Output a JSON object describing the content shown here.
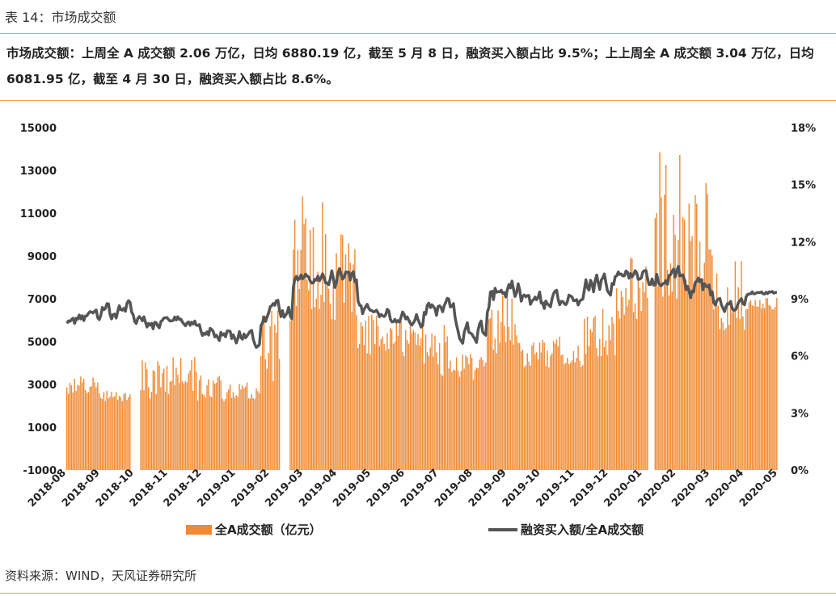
{
  "header": {
    "title": "表 14：市场成交额",
    "summary": "市场成交额：上周全 A 成交额 2.06 万亿，日均 6880.19 亿，截至 5 月 8 日，融资买入额占比 9.5%；上上周全 A 成交额 3.04 万亿，日均 6081.95 亿，截至 4 月 30 日，融资买入额占比 8.6%。"
  },
  "footer": {
    "source": "资料来源：WIND，天风证券研究所"
  },
  "chart_data": {
    "type": "bar+line",
    "x_labels": [
      "2018-08",
      "2018-09",
      "2018-10",
      "2018-11",
      "2018-12",
      "2019-01",
      "2019-02",
      "2019-03",
      "2019-04",
      "2019-05",
      "2019-06",
      "2019-07",
      "2019-08",
      "2019-09",
      "2019-10",
      "2019-11",
      "2019-12",
      "2020-01",
      "2020-02",
      "2020-03",
      "2020-04",
      "2020-05"
    ],
    "left_axis": {
      "ylim": [
        -1000,
        15000
      ],
      "ticks": [
        "-1000",
        "1000",
        "3000",
        "5000",
        "7000",
        "9000",
        "11000",
        "13000",
        "15000"
      ]
    },
    "right_axis": {
      "ylim": [
        0,
        18
      ],
      "ticks": [
        "0%",
        "3%",
        "6%",
        "9%",
        "12%",
        "15%",
        "18%"
      ]
    },
    "series": [
      {
        "name": "全A成交额（亿元）",
        "type": "bar",
        "axis": "left",
        "color": "#f08a34",
        "monthly_range": [
          [
            2500,
            3400
          ],
          [
            2200,
            2700
          ],
          [
            2200,
            4200
          ],
          [
            2500,
            4500
          ],
          [
            2200,
            3600
          ],
          [
            2300,
            3100
          ],
          [
            2800,
            6500
          ],
          [
            6500,
            11800
          ],
          [
            6000,
            10400
          ],
          [
            4300,
            6300
          ],
          [
            4300,
            6100
          ],
          [
            3300,
            5900
          ],
          [
            3200,
            4500
          ],
          [
            4300,
            7500
          ],
          [
            3800,
            5100
          ],
          [
            3700,
            5300
          ],
          [
            4300,
            6600
          ],
          [
            6000,
            9300
          ],
          [
            7000,
            14100
          ],
          [
            7500,
            12500
          ],
          [
            5500,
            8800
          ],
          [
            6500,
            7100
          ]
        ]
      },
      {
        "name": "融资买入额/全A成交额",
        "type": "line",
        "axis": "right",
        "color": "#555555",
        "monthly_range": [
          [
            7.3,
            8.5
          ],
          [
            7.5,
            9.3
          ],
          [
            7.0,
            8.4
          ],
          [
            7.3,
            8.3
          ],
          [
            6.6,
            8.0
          ],
          [
            6.2,
            7.8
          ],
          [
            7.5,
            9.3
          ],
          [
            9.6,
            10.6
          ],
          [
            9.0,
            11.0
          ],
          [
            7.6,
            8.9
          ],
          [
            7.2,
            8.7
          ],
          [
            7.6,
            9.3
          ],
          [
            6.3,
            8.2
          ],
          [
            8.3,
            10.5
          ],
          [
            8.0,
            9.7
          ],
          [
            8.2,
            9.8
          ],
          [
            8.6,
            10.7
          ],
          [
            9.5,
            10.8
          ],
          [
            9.2,
            11.0
          ],
          [
            8.5,
            10.5
          ],
          [
            8.0,
            9.2
          ],
          [
            9.1,
            9.5
          ]
        ]
      }
    ],
    "legend": [
      "全A成交额（亿元）",
      "融资买入额/全A成交额"
    ],
    "legend_position": "bottom",
    "grid": false
  }
}
